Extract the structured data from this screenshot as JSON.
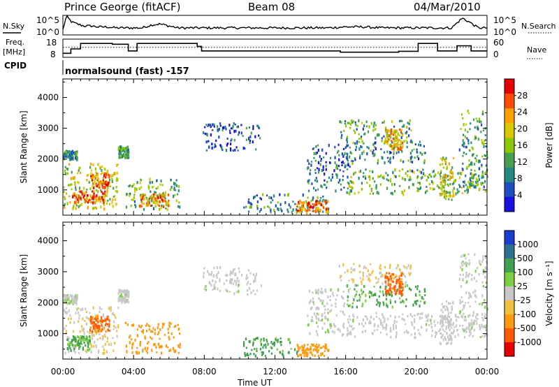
{
  "header": {
    "station": "Prince George (fitACF)",
    "beam": "Beam 08",
    "date": "04/Mar/2010"
  },
  "left_labels": {
    "nsky": "N.Sky",
    "freq_line1": "Freq.",
    "freq_line2": "[MHz]",
    "cpid": "CPID"
  },
  "right_labels": {
    "nsearch": "N.Search",
    "nave": "Nave"
  },
  "noise_axis": {
    "top": "10^5",
    "bottom": "10^0"
  },
  "freq_axis": {
    "top": "18",
    "bottom": "8"
  },
  "nave_axis": {
    "top": "60",
    "bottom": "0"
  },
  "cpid_text": "normalsound (fast) -157",
  "xlabel": "Time UT",
  "chart_data": [
    {
      "type": "line",
      "name": "noise",
      "x_hours": [
        0,
        0.2,
        0.5,
        0.8,
        1.2,
        1.6,
        2.0,
        2.5,
        3.0,
        3.5,
        4.0,
        4.5,
        5.0,
        5.5,
        6.0,
        6.5,
        7.0,
        7.5,
        8.0,
        9,
        10,
        11,
        12,
        13,
        14,
        15,
        16,
        17,
        18,
        19,
        20,
        21,
        22,
        22.6,
        23,
        23.5,
        24
      ],
      "sky_level": [
        0.2,
        0.9,
        0.6,
        0.5,
        0.4,
        0.4,
        0.35,
        0.35,
        0.3,
        0.3,
        0.3,
        0.3,
        0.45,
        0.5,
        0.4,
        0.3,
        0.3,
        0.3,
        0.3,
        0.3,
        0.3,
        0.3,
        0.3,
        0.3,
        0.3,
        0.3,
        0.35,
        0.35,
        0.3,
        0.3,
        0.3,
        0.3,
        0.3,
        0.8,
        0.6,
        0.3,
        0.3
      ]
    },
    {
      "type": "line",
      "name": "frequency",
      "ylim": [
        8,
        18
      ],
      "steps": [
        {
          "start": 0.0,
          "end": 0.45,
          "value": 10.2
        },
        {
          "start": 0.45,
          "end": 1.0,
          "value": 12.6
        },
        {
          "start": 1.0,
          "end": 2.8,
          "value": 15.6
        },
        {
          "start": 2.8,
          "end": 3.7,
          "value": 15.2
        },
        {
          "start": 3.7,
          "end": 4.2,
          "value": 11.5
        },
        {
          "start": 4.2,
          "end": 7.6,
          "value": 15.6
        },
        {
          "start": 7.6,
          "end": 7.85,
          "value": 14.0
        },
        {
          "start": 7.85,
          "end": 15.7,
          "value": 11.5
        },
        {
          "start": 15.7,
          "end": 19.0,
          "value": 10.8
        },
        {
          "start": 19.0,
          "end": 20.1,
          "value": 11.3
        },
        {
          "start": 20.1,
          "end": 21.2,
          "value": 15.6
        },
        {
          "start": 21.2,
          "end": 22.3,
          "value": 11.5
        },
        {
          "start": 22.3,
          "end": 23.1,
          "value": 14.3
        },
        {
          "start": 23.1,
          "end": 24.0,
          "value": 11.5
        }
      ],
      "nave_level": 33
    },
    {
      "type": "heatmap",
      "name": "power",
      "ylabel": "Slant Range [km]",
      "xlim": [
        0,
        24
      ],
      "ylim": [
        180,
        4600
      ],
      "yticks": [
        1000,
        2000,
        3000,
        4000
      ],
      "xticks": [
        "00:00",
        "04:00",
        "08:00",
        "12:00",
        "16:00",
        "20:00",
        "00:00"
      ],
      "colorbar": {
        "label": "Power [dB]",
        "ticks": [
          "28",
          "24",
          "20",
          "16",
          "12",
          "8",
          "4"
        ],
        "colors": [
          "#e60000",
          "#ff4d00",
          "#ff9f00",
          "#d8c800",
          "#8fc800",
          "#46a050",
          "#228a82",
          "#1e4fc0",
          "#1a10e0"
        ]
      },
      "blobs": [
        {
          "t0": 0.0,
          "t1": 3.1,
          "r0": 400,
          "r1": 1900,
          "level": 18
        },
        {
          "t0": 0.5,
          "t1": 2.4,
          "r0": 600,
          "r1": 1000,
          "level": 27
        },
        {
          "t0": 1.5,
          "t1": 2.6,
          "r0": 1100,
          "r1": 1600,
          "level": 25
        },
        {
          "t0": 3.5,
          "t1": 6.6,
          "r0": 400,
          "r1": 1400,
          "level": 14
        },
        {
          "t0": 4.3,
          "t1": 6.0,
          "r0": 500,
          "r1": 900,
          "level": 24
        },
        {
          "t0": 3.1,
          "t1": 3.7,
          "r0": 2050,
          "r1": 2450,
          "level": 11
        },
        {
          "t0": 0.0,
          "t1": 0.8,
          "r0": 2000,
          "r1": 2300,
          "level": 10
        },
        {
          "t0": 7.9,
          "t1": 11.2,
          "r0": 2300,
          "r1": 3200,
          "level": 6
        },
        {
          "t0": 10.2,
          "t1": 15.0,
          "r0": 300,
          "r1": 900,
          "level": 10
        },
        {
          "t0": 13.2,
          "t1": 15.0,
          "r0": 300,
          "r1": 700,
          "level": 26
        },
        {
          "t0": 13.8,
          "t1": 16.2,
          "r0": 1000,
          "r1": 2500,
          "level": 8
        },
        {
          "t0": 16.0,
          "t1": 24.0,
          "r0": 900,
          "r1": 1700,
          "level": 14
        },
        {
          "t0": 16.0,
          "t1": 20.5,
          "r0": 1900,
          "r1": 2600,
          "level": 10
        },
        {
          "t0": 15.6,
          "t1": 19.7,
          "r0": 2600,
          "r1": 3300,
          "level": 12
        },
        {
          "t0": 18.2,
          "t1": 19.2,
          "r0": 2300,
          "r1": 3000,
          "level": 22
        },
        {
          "t0": 21.3,
          "t1": 22.1,
          "r0": 700,
          "r1": 2100,
          "level": 18
        },
        {
          "t0": 22.4,
          "t1": 24.0,
          "r0": 1100,
          "r1": 3600,
          "level": 12
        }
      ]
    },
    {
      "type": "heatmap",
      "name": "velocity",
      "ylabel": "Slant Range [km]",
      "xlim": [
        0,
        24
      ],
      "ylim": [
        180,
        4600
      ],
      "yticks": [
        1000,
        2000,
        3000,
        4000
      ],
      "xticks": [
        "00:00",
        "04:00",
        "08:00",
        "12:00",
        "16:00",
        "20:00",
        "00:00"
      ],
      "colorbar": {
        "label": "Velocity [m s⁻¹]",
        "ticks": [
          "1000",
          "500",
          "100",
          "25",
          "-25",
          "-100",
          "-500",
          "-1000"
        ],
        "colors": [
          "#1a3cd0",
          "#2e6e90",
          "#3fa050",
          "#7ad040",
          "#c8c8c8",
          "#f0c040",
          "#ff9a10",
          "#ff5a00",
          "#e60000"
        ]
      },
      "blobs": [
        {
          "t0": 0.0,
          "t1": 3.1,
          "r0": 400,
          "r1": 1900,
          "level": -20
        },
        {
          "t0": 0.2,
          "t1": 1.5,
          "r0": 500,
          "r1": 950,
          "level": 120
        },
        {
          "t0": 1.5,
          "t1": 2.6,
          "r0": 1100,
          "r1": 1600,
          "level": -600
        },
        {
          "t0": 3.5,
          "t1": 6.6,
          "r0": 400,
          "r1": 1400,
          "level": -250
        },
        {
          "t0": 3.1,
          "t1": 3.7,
          "r0": 2050,
          "r1": 2450,
          "level": 10
        },
        {
          "t0": 0.0,
          "t1": 0.8,
          "r0": 2000,
          "r1": 2300,
          "level": 10
        },
        {
          "t0": 7.9,
          "t1": 11.2,
          "r0": 2300,
          "r1": 3200,
          "level": 5
        },
        {
          "t0": 10.2,
          "t1": 13.3,
          "r0": 300,
          "r1": 900,
          "level": 150
        },
        {
          "t0": 13.2,
          "t1": 15.0,
          "r0": 300,
          "r1": 700,
          "level": -200
        },
        {
          "t0": 13.8,
          "t1": 16.2,
          "r0": 1000,
          "r1": 2500,
          "level": 8
        },
        {
          "t0": 16.0,
          "t1": 24.0,
          "r0": 900,
          "r1": 1700,
          "level": 5
        },
        {
          "t0": 16.0,
          "t1": 20.5,
          "r0": 1900,
          "r1": 2600,
          "level": 120
        },
        {
          "t0": 15.6,
          "t1": 19.7,
          "r0": 2600,
          "r1": 3300,
          "level": -30
        },
        {
          "t0": 18.2,
          "t1": 19.2,
          "r0": 2300,
          "r1": 3000,
          "level": -700
        },
        {
          "t0": 21.3,
          "t1": 22.1,
          "r0": 700,
          "r1": 2100,
          "level": 0
        },
        {
          "t0": 22.4,
          "t1": 24.0,
          "r0": 1100,
          "r1": 3600,
          "level": 10
        }
      ]
    }
  ]
}
